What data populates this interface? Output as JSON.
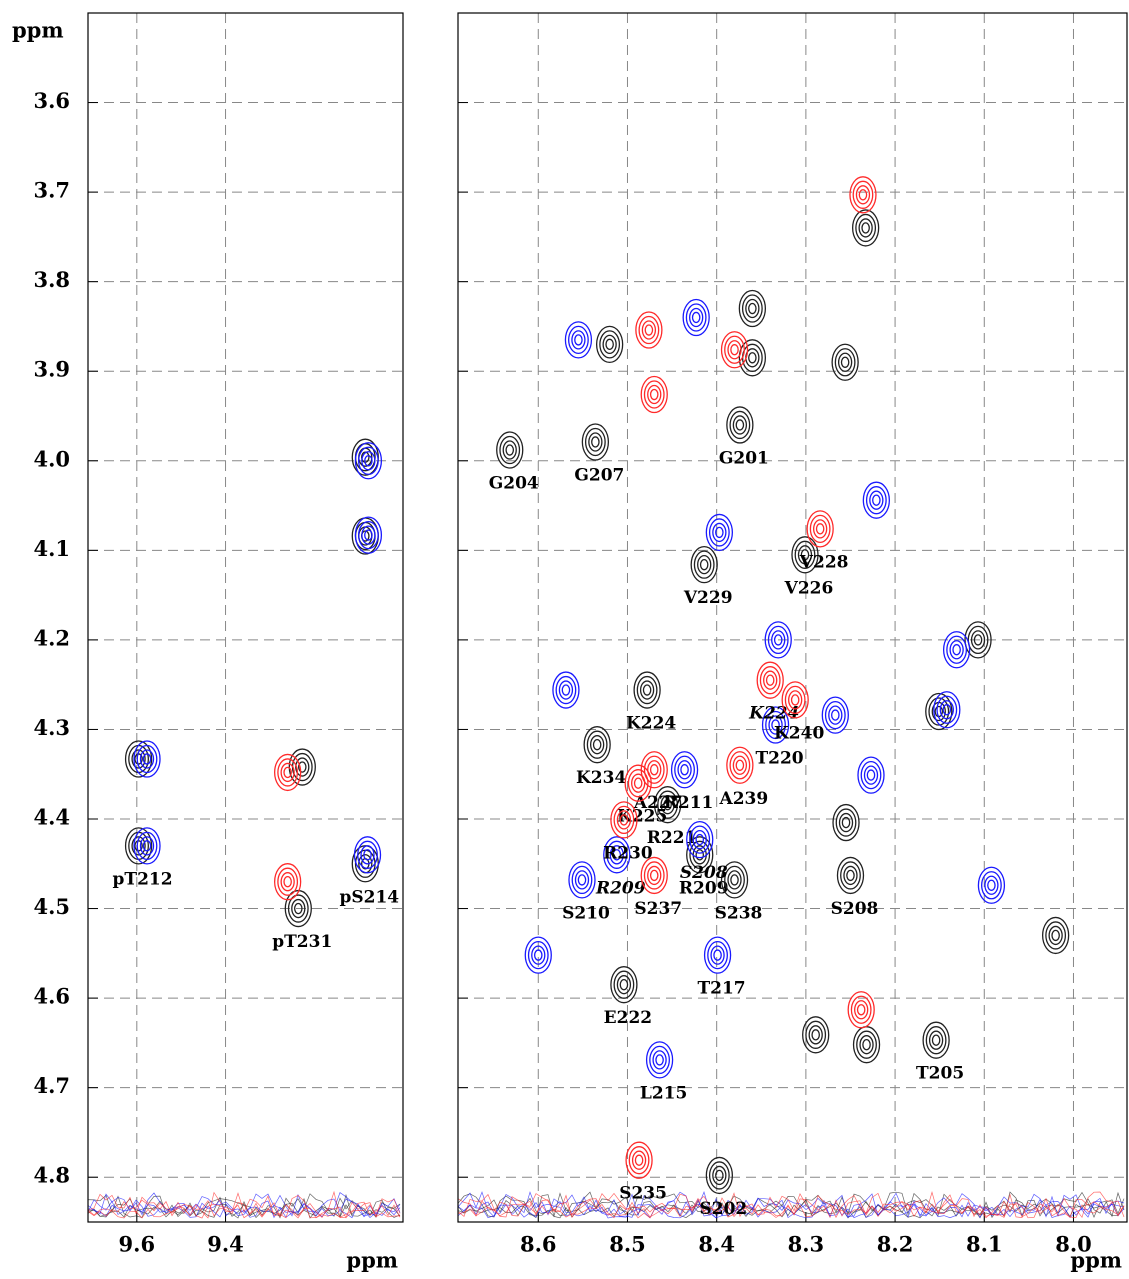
{
  "chart_data": [
    {
      "type": "contour",
      "ylabel": "ppm",
      "xlabel": "ppm",
      "xlim": [
        9.71,
        9.0
      ],
      "ylim": [
        3.5,
        4.85
      ],
      "xticks": [
        9.6,
        9.4
      ],
      "yticks": [
        3.6,
        3.7,
        3.8,
        3.9,
        {
          "value": 4.0,
          "label": "4.0"
        },
        4.1,
        4.2,
        4.3,
        4.4,
        4.5,
        4.6,
        4.7,
        4.8
      ],
      "grid": true,
      "series": [
        {
          "color": "#222222",
          "x": [
            9.596,
            9.596,
            9.236,
            9.227,
            9.085,
            9.085,
            9.085
          ],
          "y": [
            4.43,
            4.333,
            4.5,
            4.342,
            4.45,
            3.996,
            4.084
          ],
          "labels": [
            "pT212",
            null,
            "pT231",
            null,
            "pS214",
            null,
            null
          ]
        },
        {
          "color": "#1a1aff",
          "x": [
            9.577,
            9.577,
            9.08,
            9.078,
            9.078
          ],
          "y": [
            4.43,
            4.333,
            4.44,
            4.0,
            4.083
          ]
        },
        {
          "color": "#ff2a2a",
          "x": [
            9.26,
            9.26
          ],
          "y": [
            4.348,
            4.47
          ]
        }
      ]
    },
    {
      "type": "contour",
      "xlabel": "ppm",
      "xlim": [
        8.69,
        7.94
      ],
      "ylim": [
        3.5,
        4.85
      ],
      "xticks": [
        8.6,
        8.5,
        8.4,
        8.3,
        8.2,
        8.1,
        {
          "value": 8.0,
          "label": "8.0"
        }
      ],
      "yticks": [
        3.6,
        3.7,
        3.8,
        3.9,
        4.0,
        4.1,
        4.2,
        4.3,
        4.4,
        4.5,
        4.6,
        4.7,
        4.8
      ],
      "grid": true,
      "series": [
        {
          "color": "#222222",
          "x": [
            8.374,
            8.632,
            8.536,
            8.301,
            8.414,
            8.478,
            8.534,
            8.455,
            8.419,
            8.38,
            8.25,
            8.504,
            8.154,
            8.397,
            8.256,
            8.36,
            8.36,
            8.52,
            8.107,
            8.151,
            8.255,
            8.02,
            8.289,
            8.232,
            8.233
          ],
          "y": [
            3.96,
            3.988,
            3.979,
            4.105,
            4.116,
            4.256,
            4.317,
            4.384,
            4.44,
            4.468,
            4.463,
            4.585,
            4.647,
            4.798,
            3.89,
            3.83,
            3.885,
            3.87,
            4.2,
            4.28,
            4.404,
            4.53,
            4.641,
            4.652,
            3.74
          ],
          "labels": [
            "G201",
            "G204",
            "G207",
            "V226",
            "V229",
            "K224",
            "K234",
            "R221",
            "R209",
            "S238",
            "S208",
            "E222",
            "T205",
            "S202",
            null,
            null,
            null,
            null,
            null,
            null,
            null,
            null,
            null,
            null,
            null
          ]
        },
        {
          "color": "#1a1aff",
          "x": [
            8.334,
            8.436,
            8.512,
            8.419,
            8.551,
            8.399,
            8.464,
            8.555,
            8.423,
            8.397,
            8.331,
            8.221,
            8.142,
            8.227,
            8.569,
            8.6,
            8.092,
            8.267,
            8.131
          ],
          "y": [
            4.295,
            4.345,
            4.44,
            4.423,
            4.468,
            4.552,
            4.669,
            3.865,
            3.84,
            4.08,
            4.2,
            4.044,
            4.278,
            4.351,
            4.256,
            4.552,
            4.474,
            4.284,
            4.211
          ],
          "labels": [
            "T220",
            "R211",
            {
              "text": "R209",
              "italic": true
            },
            {
              "text": "S208",
              "italic": true
            },
            "S210",
            "T217",
            "L215",
            null,
            null,
            null,
            null,
            null,
            null,
            null,
            null,
            null,
            null,
            null,
            null
          ]
        },
        {
          "color": "#ff2a2a",
          "x": [
            8.284,
            8.34,
            8.312,
            8.47,
            8.488,
            8.374,
            8.504,
            8.47,
            8.487,
            8.476,
            8.236,
            8.38,
            8.47,
            8.238
          ],
          "y": [
            4.076,
            4.245,
            4.267,
            4.345,
            4.36,
            4.34,
            4.401,
            4.463,
            4.781,
            3.854,
            3.703,
            3.876,
            3.926,
            4.613
          ],
          "labels": [
            "V228",
            {
              "text": "K224",
              "italic": true
            },
            "K240",
            "A227",
            "K225",
            "A239",
            "R230",
            "S237",
            "S235",
            null,
            null,
            null,
            null,
            null
          ]
        }
      ]
    }
  ]
}
